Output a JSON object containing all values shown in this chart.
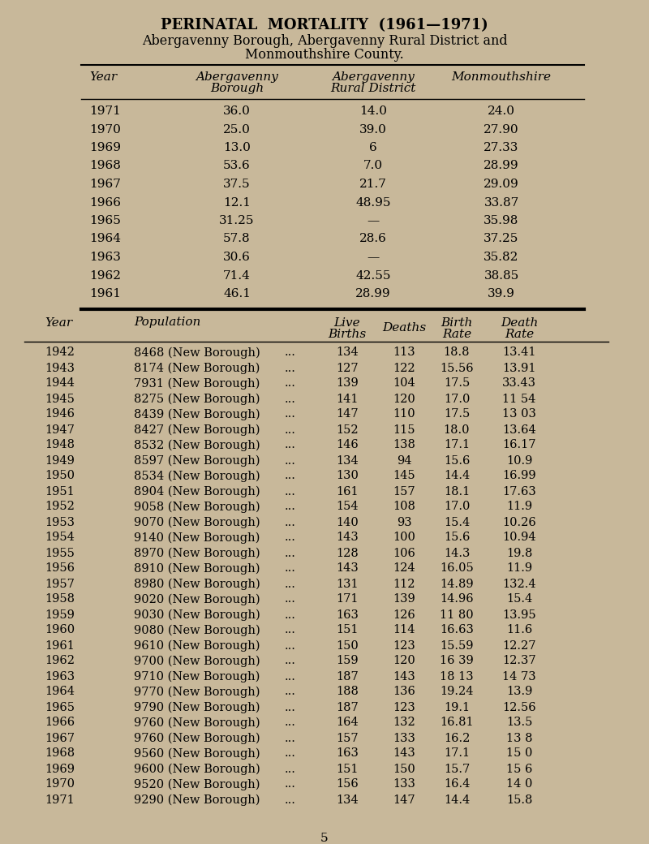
{
  "bg_color": "#c8b89a",
  "title_line1": "PERINATAL  MORTALITY  (1961—1971)",
  "title_line2": "Abergavenny Borough, Abergavenny Rural District and",
  "title_line3": "Monmouthshire County.",
  "table1_rows": [
    [
      "1971",
      "36.0",
      "14.0",
      "24.0"
    ],
    [
      "1970",
      "25.0",
      "39.0",
      "27.90"
    ],
    [
      "1969",
      "13.0",
      "6",
      "27.33"
    ],
    [
      "1968",
      "53.6",
      "7.0",
      "28.99"
    ],
    [
      "1967",
      "37.5",
      "21.7",
      "29.09"
    ],
    [
      "1966",
      "12.1",
      "48.95",
      "33.87"
    ],
    [
      "1965",
      "31.25",
      "—",
      "35.98"
    ],
    [
      "1964",
      "57.8",
      "28.6",
      "37.25"
    ],
    [
      "1963",
      "30.6",
      "—",
      "35.82"
    ],
    [
      "1962",
      "71.4",
      "42.55",
      "38.85"
    ],
    [
      "1961",
      "46.1",
      "28.99",
      "39.9"
    ]
  ],
  "table2_rows": [
    [
      "1942",
      "8468 (New Borough)",
      "...",
      "134",
      "113",
      "18.8",
      "13.41"
    ],
    [
      "1943",
      "8174 (New Borough)",
      "...",
      "127",
      "122",
      "15.56",
      "13.91"
    ],
    [
      "1944",
      "7931 (New Borough)",
      "...",
      "139",
      "104",
      "17.5",
      "33.43"
    ],
    [
      "1945",
      "8275 (New Borough)",
      "...",
      "141",
      "120",
      "17.0",
      "11 54"
    ],
    [
      "1946",
      "8439 (New Borough)",
      "...",
      "147",
      "110",
      "17.5",
      "13 03"
    ],
    [
      "1947",
      "8427 (New Borough)",
      "...",
      "152",
      "115",
      "18.0",
      "13.64"
    ],
    [
      "1948",
      "8532 (New Borough)",
      "...",
      "146",
      "138",
      "17.1",
      "16.17"
    ],
    [
      "1949",
      "8597 (New Borough)",
      "...",
      "134",
      "94",
      "15.6",
      "10.9"
    ],
    [
      "1950",
      "8534 (New Borough)",
      "...",
      "130",
      "145",
      "14.4",
      "16.99"
    ],
    [
      "1951",
      "8904 (New Borough)",
      "...",
      "161",
      "157",
      "18.1",
      "17.63"
    ],
    [
      "1952",
      "9058 (New Borough)",
      "...",
      "154",
      "108",
      "17.0",
      "11.9"
    ],
    [
      "1953",
      "9070 (New Borough)",
      "...",
      "140",
      "93",
      "15.4",
      "10.26"
    ],
    [
      "1954",
      "9140 (New Borough)",
      "...",
      "143",
      "100",
      "15.6",
      "10.94"
    ],
    [
      "1955",
      "8970 (New Borough)",
      "...",
      "128",
      "106",
      "14.3",
      "19.8"
    ],
    [
      "1956",
      "8910 (New Borough)",
      "...",
      "143",
      "124",
      "16.05",
      "11.9"
    ],
    [
      "1957",
      "8980 (New Borough)",
      "...",
      "131",
      "112",
      "14.89",
      "132.4"
    ],
    [
      "1958",
      "9020 (New Borough)",
      "...",
      "171",
      "139",
      "14.96",
      "15.4"
    ],
    [
      "1959",
      "9030 (New Borough)",
      "...",
      "163",
      "126",
      "11 80",
      "13.95"
    ],
    [
      "1960",
      "9080 (New Borough)",
      "...",
      "151",
      "114",
      "16.63",
      "11.6"
    ],
    [
      "1961",
      "9610 (New Borough)",
      "...",
      "150",
      "123",
      "15.59",
      "12.27"
    ],
    [
      "1962",
      "9700 (New Borough)",
      "...",
      "159",
      "120",
      "16 39",
      "12.37"
    ],
    [
      "1963",
      "9710 (New Borough)",
      "...",
      "187",
      "143",
      "18 13",
      "14 73"
    ],
    [
      "1964",
      "9770 (New Borough)",
      "...",
      "188",
      "136",
      "19.24",
      "13.9"
    ],
    [
      "1965",
      "9790 (New Borough)",
      "...",
      "187",
      "123",
      "19.1",
      "12.56"
    ],
    [
      "1966",
      "9760 (New Borough)",
      "...",
      "164",
      "132",
      "16.81",
      "13.5"
    ],
    [
      "1967",
      "9760 (New Borough)",
      "...",
      "157",
      "133",
      "16.2",
      "13 8"
    ],
    [
      "1968",
      "9560 (New Borough)",
      "...",
      "163",
      "143",
      "17.1",
      "15 0"
    ],
    [
      "1969",
      "9600 (New Borough)",
      "...",
      "151",
      "150",
      "15.7",
      "15 6"
    ],
    [
      "1970",
      "9520 (New Borough)",
      "...",
      "156",
      "133",
      "16.4",
      "14 0"
    ],
    [
      "1971",
      "9290 (New Borough)",
      "...",
      "134",
      "147",
      "14.4",
      "15.8"
    ]
  ],
  "page_number": "5"
}
